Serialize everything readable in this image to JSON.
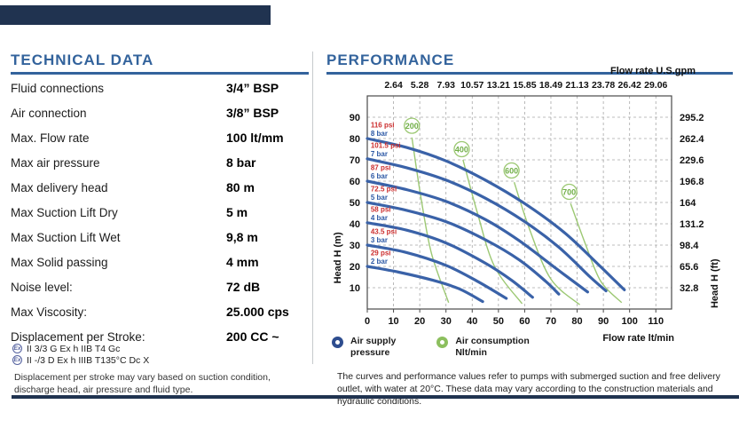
{
  "banner": {
    "color": "#203350"
  },
  "technical": {
    "heading": "TECHNICAL DATA",
    "rows": [
      {
        "label": "Fluid connections",
        "value": "3/4” BSP"
      },
      {
        "label": "Air connection",
        "value": "3/8” BSP"
      },
      {
        "label": "Max. Flow rate",
        "value": "100 lt/mm"
      },
      {
        "label": "Max air pressure",
        "value": "8 bar"
      },
      {
        "label": "Max delivery head",
        "value": "80 m"
      },
      {
        "label": "Max Suction Lift Dry",
        "value": "5 m"
      },
      {
        "label": "Max Suction Lift Wet",
        "value": "9,8 m"
      },
      {
        "label": "Max Solid passing",
        "value": "4 mm"
      },
      {
        "label": "Noise level:",
        "value": "72 dB"
      },
      {
        "label": "Max Viscosity:",
        "value": "25.000 cps"
      },
      {
        "label": "Displacement per Stroke:",
        "value": "200 CC ~"
      }
    ],
    "atex_symbol": "Ex",
    "atex_lines": [
      "II 3/3 G Ex h IIB T4 Gc",
      "II -/3 D Ex h IIIB T135°C Dc X"
    ],
    "note": "Displacement per stroke may vary based on suction condition, discharge head, air pressure and fluid type."
  },
  "performance": {
    "heading": "PERFORMANCE",
    "legend": [
      {
        "line1": "Air supply",
        "line2": "pressure",
        "color": "#2e4d8f"
      },
      {
        "line1": "Air consumption",
        "line2": "Nlt/min",
        "color": "#8cbf5e"
      }
    ],
    "footnote": "The curves and performance values refer to pumps with submerged suction and free delivery outlet, with water at 20°C. These data may vary according to the construction materials and hydraulic conditions."
  },
  "chart_data": {
    "type": "line",
    "grid": true,
    "x_axis_bottom": {
      "label": "Flow rate  lt/min",
      "unit": "lt/min",
      "range": [
        0,
        116
      ],
      "ticks": [
        0,
        10,
        20,
        30,
        40,
        50,
        60,
        70,
        80,
        90,
        100,
        110
      ]
    },
    "x_axis_top": {
      "label": "Flow rate U.S.gpm",
      "unit": "U.S.gpm",
      "tick_positions": [
        10,
        20,
        30,
        40,
        50,
        60,
        70,
        80,
        90,
        100,
        110
      ],
      "tick_labels": [
        "2.64",
        "5.28",
        "7.93",
        "10.57",
        "13.21",
        "15.85",
        "18.49",
        "21.13",
        "23.78",
        "26.42",
        "29.06"
      ]
    },
    "y_axis_left": {
      "label": "Head H (m)",
      "unit": "m",
      "range": [
        0,
        100
      ],
      "ticks": [
        10,
        20,
        30,
        40,
        50,
        60,
        70,
        80,
        90
      ]
    },
    "y_axis_right": {
      "label": "Head H (ft)",
      "unit": "ft",
      "tick_positions": [
        10,
        20,
        30,
        40,
        50,
        60,
        70,
        80,
        90
      ],
      "tick_labels": [
        "32.8",
        "65.6",
        "98.4",
        "131.2",
        "164",
        "196.8",
        "229.6",
        "262.4",
        "295.2"
      ]
    },
    "colors": {
      "pressure_curve": "#3a62a8",
      "consumption_curve": "#9cc873",
      "consumption_text": "#6fae45",
      "psi_label": "#cc2f2f",
      "bar_label": "#2c58a5",
      "grid": "#a8a8a8",
      "frame": "#4a4a4a",
      "axis_text": "#111111"
    },
    "series": [
      {
        "name": "8 bar",
        "psi_label": "116 psi",
        "bar_label": "8 bar",
        "points": [
          [
            0,
            80
          ],
          [
            15,
            75.8
          ],
          [
            30,
            69.5
          ],
          [
            45,
            60.5
          ],
          [
            60,
            49.5
          ],
          [
            75,
            36
          ],
          [
            88,
            21
          ],
          [
            98,
            9
          ]
        ]
      },
      {
        "name": "7 bar",
        "psi_label": "101.5 psi",
        "bar_label": "7 bar",
        "points": [
          [
            0,
            70.5
          ],
          [
            15,
            66.3
          ],
          [
            30,
            60.5
          ],
          [
            45,
            52
          ],
          [
            60,
            41
          ],
          [
            73,
            29
          ],
          [
            85,
            15
          ],
          [
            91,
            8.5
          ]
        ]
      },
      {
        "name": "6 bar",
        "psi_label": "87 psi",
        "bar_label": "6 bar",
        "points": [
          [
            0,
            60
          ],
          [
            15,
            56
          ],
          [
            30,
            50.5
          ],
          [
            45,
            42
          ],
          [
            58,
            32
          ],
          [
            72,
            19
          ],
          [
            84,
            8
          ]
        ]
      },
      {
        "name": "5 bar",
        "psi_label": "72.5 psi",
        "bar_label": "5 bar",
        "points": [
          [
            0,
            50
          ],
          [
            15,
            46.3
          ],
          [
            30,
            41
          ],
          [
            45,
            32.5
          ],
          [
            58,
            23
          ],
          [
            68,
            13
          ],
          [
            73,
            7
          ]
        ]
      },
      {
        "name": "4 bar",
        "psi_label": "58 psi",
        "bar_label": "4 bar",
        "points": [
          [
            0,
            40.5
          ],
          [
            15,
            37
          ],
          [
            30,
            31
          ],
          [
            45,
            21.5
          ],
          [
            55,
            13.5
          ],
          [
            63,
            5.5
          ]
        ]
      },
      {
        "name": "3 bar",
        "psi_label": "43.5 psi",
        "bar_label": "3 bar",
        "points": [
          [
            0,
            30
          ],
          [
            15,
            26.5
          ],
          [
            30,
            20.5
          ],
          [
            42,
            13
          ],
          [
            53,
            5
          ]
        ]
      },
      {
        "name": "2 bar",
        "psi_label": "29 psi",
        "bar_label": "2 bar",
        "points": [
          [
            0,
            20
          ],
          [
            12,
            17.3
          ],
          [
            25,
            13.5
          ],
          [
            35,
            9.5
          ],
          [
            44,
            3.5
          ]
        ]
      }
    ],
    "consumption": [
      {
        "label": "200",
        "circle": [
          17,
          86
        ],
        "points": [
          [
            17,
            80.5
          ],
          [
            20.5,
            52
          ],
          [
            24.5,
            26
          ],
          [
            31,
            3
          ]
        ]
      },
      {
        "label": "400",
        "circle": [
          36,
          75
        ],
        "points": [
          [
            36.5,
            70
          ],
          [
            42,
            45
          ],
          [
            48.5,
            20
          ],
          [
            59,
            2.5
          ]
        ]
      },
      {
        "label": "600",
        "circle": [
          55,
          65
        ],
        "points": [
          [
            56,
            59.5
          ],
          [
            62,
            37
          ],
          [
            70,
            14
          ],
          [
            81,
            2
          ]
        ]
      },
      {
        "label": "700",
        "circle": [
          77,
          55
        ],
        "points": [
          [
            77.5,
            49.5
          ],
          [
            83,
            31
          ],
          [
            89,
            13
          ],
          [
            97,
            3
          ]
        ]
      }
    ]
  }
}
